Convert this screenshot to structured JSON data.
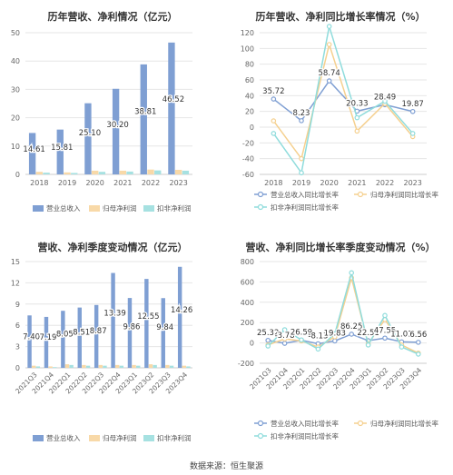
{
  "footer": "数据来源：恒生聚源",
  "colors": {
    "revenue": "#7f9fd3",
    "parent": "#f8d9a8",
    "deduct": "#a6e1e1",
    "line_rev": "#7f9fd3",
    "line_parent": "#f5d08f",
    "line_deduct": "#8fdcdc",
    "grid": "#e6e6e6",
    "axis_text": "#666",
    "label": "#333"
  },
  "chart_data": [
    {
      "type": "bar",
      "title": "历年营收、净利情况（亿元）",
      "categories": [
        "2018",
        "2019",
        "2020",
        "2021",
        "2022",
        "2023"
      ],
      "ylim": [
        0,
        50
      ],
      "yticks": [
        0,
        10,
        20,
        30,
        40,
        50
      ],
      "series": [
        {
          "name": "营业总收入",
          "values": [
            14.61,
            15.81,
            25.1,
            30.2,
            38.81,
            46.52
          ],
          "labels": [
            "14.61",
            "15.81",
            "25.10",
            "30.20",
            "38.81",
            "46.52"
          ]
        },
        {
          "name": "归母净利润",
          "values": [
            0.9,
            0.7,
            1.3,
            1.3,
            1.7,
            1.6
          ]
        },
        {
          "name": "扣非净利润",
          "values": [
            0.6,
            0.5,
            0.9,
            1.0,
            1.4,
            1.3
          ]
        }
      ],
      "legend": "bottom"
    },
    {
      "type": "line",
      "title": "历年营收、净利同比增长率情况（%）",
      "categories": [
        "2018",
        "2019",
        "2020",
        "2021",
        "2022",
        "2023"
      ],
      "ylim": [
        -60,
        120
      ],
      "yticks": [
        -60,
        -40,
        -20,
        0,
        20,
        40,
        60,
        80,
        100,
        120
      ],
      "series": [
        {
          "name": "营业总收入同比增长率",
          "values": [
            35.72,
            8.23,
            58.74,
            20.33,
            28.49,
            19.87
          ],
          "labels": [
            "35.72",
            "8.23",
            "58.74",
            "20.33",
            "28.49",
            "19.87"
          ]
        },
        {
          "name": "归母净利润同比增长率",
          "values": [
            8,
            -40,
            105,
            -5,
            30,
            -12
          ]
        },
        {
          "name": "扣非净利润同比增长率",
          "values": [
            -8,
            -58,
            128,
            12,
            33,
            -8
          ]
        }
      ],
      "legend": "bottom"
    },
    {
      "type": "bar",
      "title": "营收、净利季度变动情况（亿元）",
      "categories": [
        "2021Q3",
        "2021Q4",
        "2022Q1",
        "2022Q2",
        "2022Q3",
        "2022Q4",
        "2023Q1",
        "2023Q2",
        "2023Q3",
        "2023Q4"
      ],
      "ylim": [
        0,
        15
      ],
      "yticks": [
        0,
        3,
        6,
        9,
        12,
        15
      ],
      "series": [
        {
          "name": "营业总收入",
          "values": [
            7.4,
            7.19,
            8.05,
            8.51,
            8.87,
            13.39,
            9.86,
            12.55,
            9.84,
            14.26
          ],
          "labels": [
            "7.40",
            "7.19",
            "8.05",
            "8.51",
            "8.87",
            "13.39",
            "9.86",
            "12.55",
            "9.84",
            "14.26"
          ]
        },
        {
          "name": "归母净利润",
          "values": [
            0.3,
            0.2,
            0.5,
            0.4,
            0.4,
            0.4,
            0.4,
            0.5,
            0.4,
            0.3
          ]
        },
        {
          "name": "扣非净利润",
          "values": [
            0.2,
            0.1,
            0.4,
            0.3,
            0.3,
            0.3,
            0.3,
            0.4,
            0.3,
            0.2
          ]
        }
      ],
      "legend": "bottom"
    },
    {
      "type": "line",
      "title": "营收、净利同比增长率季度变动情况（%）",
      "categories": [
        "2021Q3",
        "2021Q4",
        "2022Q1",
        "2022Q2",
        "2022Q3",
        "2022Q4",
        "2023Q1",
        "2023Q2",
        "2023Q3",
        "2023Q4"
      ],
      "ylim": [
        -200,
        800
      ],
      "yticks": [
        -200,
        0,
        200,
        400,
        600,
        800
      ],
      "series": [
        {
          "name": "营业总收入同比增长率",
          "values": [
            25.32,
            -3.78,
            26.59,
            -8.13,
            19.83,
            86.25,
            22.51,
            47.55,
            11.01,
            6.56
          ],
          "labels": [
            "25.32",
            "-3.78",
            "26.59",
            "-8.13",
            "19.83",
            "86.25",
            "22.51",
            "47.55",
            "11.01",
            "6.56"
          ]
        },
        {
          "name": "归母净利润同比增长率",
          "values": [
            -20,
            40,
            20,
            -40,
            60,
            640,
            -10,
            230,
            -20,
            -100
          ]
        },
        {
          "name": "扣非净利润同比增长率",
          "values": [
            -30,
            130,
            30,
            -60,
            90,
            690,
            -20,
            270,
            -40,
            -110
          ]
        }
      ],
      "legend": "bottom"
    }
  ]
}
